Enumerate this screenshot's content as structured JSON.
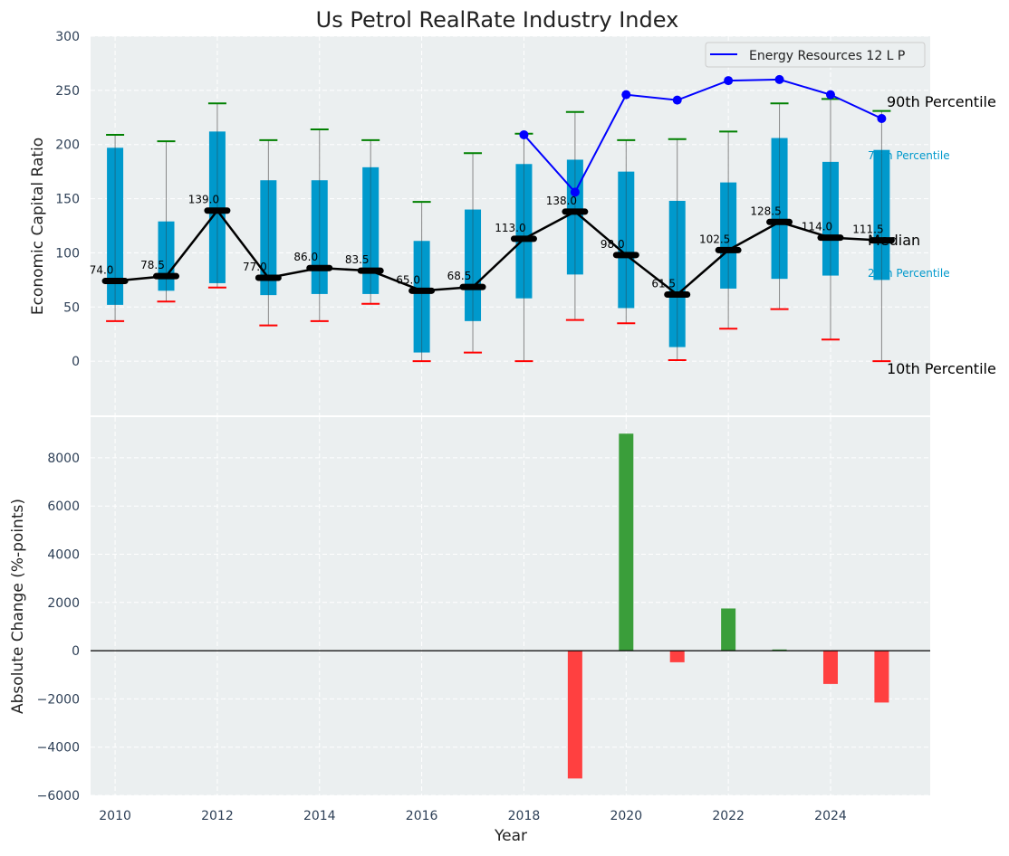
{
  "chart_data": [
    {
      "type": "box-line",
      "title": "Us Petrol RealRate Industry Index",
      "ylabel": "Economic Capital Ratio",
      "ylim": [
        -50,
        300
      ],
      "xlim": [
        2009.52,
        2025.95
      ],
      "yticks": [
        0,
        50,
        100,
        150,
        200,
        250,
        300
      ],
      "grid": true,
      "years": [
        2010,
        2011,
        2012,
        2013,
        2014,
        2015,
        2016,
        2017,
        2018,
        2019,
        2020,
        2021,
        2022,
        2023,
        2024,
        2025
      ],
      "p90": [
        209,
        203,
        238,
        204,
        214,
        204,
        147,
        192,
        210,
        230,
        204,
        205,
        212,
        238,
        242,
        231
      ],
      "p75": [
        197,
        129,
        212,
        167,
        167,
        179,
        111,
        140,
        182,
        186,
        175,
        148,
        165,
        206,
        184,
        195
      ],
      "median": [
        74.0,
        78.5,
        139.0,
        77.0,
        86.0,
        83.5,
        65.0,
        68.5,
        113.0,
        138.0,
        98.0,
        61.5,
        102.5,
        128.5,
        114.0,
        111.5
      ],
      "median_labels": [
        "74.0",
        "78.5",
        "139.0",
        "77.0",
        "86.0",
        "83.5",
        "65.0",
        "68.5",
        "113.0",
        "138.0",
        "98.0",
        "61.5",
        "102.5",
        "128.5",
        "114.0",
        "111.5"
      ],
      "p25": [
        52,
        65,
        72,
        61,
        62,
        62,
        8,
        37,
        58,
        80,
        49,
        13,
        67,
        76,
        79,
        75
      ],
      "p10": [
        37,
        55,
        68,
        33,
        37,
        53,
        0,
        8,
        0,
        38,
        35,
        1,
        30,
        48,
        20,
        0
      ],
      "series": [
        {
          "name": "Energy Resources 12 L P",
          "x": [
            2018,
            2019,
            2020,
            2021,
            2022,
            2023,
            2024,
            2025
          ],
          "values": [
            209,
            156,
            246,
            241,
            259,
            260,
            246,
            224
          ]
        }
      ],
      "legend": {
        "placement": "top-right",
        "entries": [
          "Energy Resources 12 L P"
        ]
      },
      "annotations": {
        "p90": "90th Percentile",
        "p75": "75th Percentile",
        "median": "Median",
        "p25": "25th Percentile",
        "p10": "10th Percentile"
      },
      "colors": {
        "box": "#0099cc",
        "median": "#000000",
        "p90": "#008000",
        "p10": "#ff0000",
        "series": "#0000ff",
        "bg": "#ebeff0"
      }
    },
    {
      "type": "bar",
      "xlabel": "Year",
      "ylabel": "Absolute Change (%-points)",
      "ylim": [
        -6000,
        9685
      ],
      "yticks": [
        -6000,
        -4000,
        -2000,
        0,
        2000,
        4000,
        6000,
        8000
      ],
      "xticks": [
        2010,
        2012,
        2014,
        2016,
        2018,
        2020,
        2022,
        2024
      ],
      "categories": [
        2019,
        2020,
        2021,
        2022,
        2023,
        2024,
        2025
      ],
      "values": [
        -5300,
        9000,
        -480,
        1750,
        50,
        -1380,
        -2150
      ],
      "colors": {
        "positive": "#3a9e3a",
        "negative": "#ff4040"
      }
    }
  ]
}
